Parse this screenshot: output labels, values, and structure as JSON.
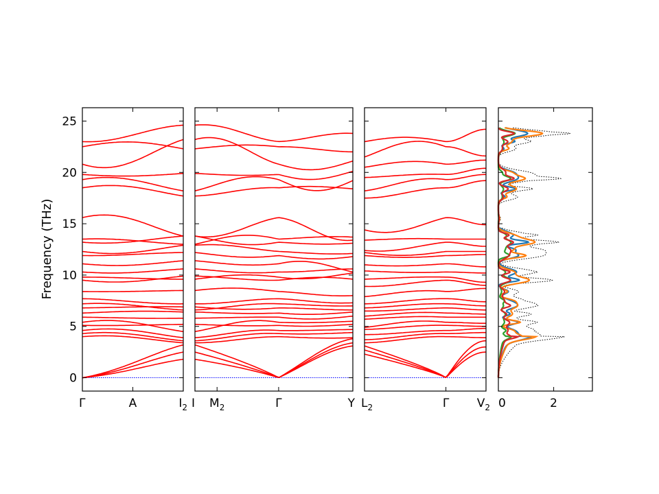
{
  "chart_data": {
    "type": "line",
    "title": "",
    "ylabel": "Frequency (THz)",
    "ylim": [
      -1.3,
      26.3
    ],
    "yticks": [
      0,
      5,
      10,
      15,
      20,
      25
    ],
    "band_color": "#ff0000",
    "zero_line_color": "#0000ff",
    "panels": [
      {
        "name": "panel-1",
        "ticks": [
          {
            "pos": 0,
            "label": "Γ"
          },
          {
            "pos": 0.5,
            "label": "A"
          },
          {
            "pos": 1,
            "label": "I",
            "sub": "2"
          }
        ]
      },
      {
        "name": "panel-2",
        "ticks": [
          {
            "pos": 0,
            "label": "I"
          },
          {
            "pos": 0.14,
            "label": "M",
            "sub": "2"
          },
          {
            "pos": 0.53,
            "label": "Γ"
          },
          {
            "pos": 1,
            "label": "Y"
          }
        ]
      },
      {
        "name": "panel-3",
        "ticks": [
          {
            "pos": 0,
            "label": "L",
            "sub": "2"
          },
          {
            "pos": 0.67,
            "label": "Γ"
          },
          {
            "pos": 1,
            "label": "V",
            "sub": "2"
          }
        ]
      }
    ],
    "bands": [
      {
        "g": 23.0,
        "e": [
          23.6,
          24.6,
          24.3,
          23.8,
          23.0,
          24.2,
          23.9,
          23.6,
          23.7
        ]
      },
      {
        "g": 22.5,
        "e": [
          23.1,
          22.3,
          22.9,
          22.0,
          21.5,
          21.6,
          23.2,
          22.3,
          23.5
        ]
      },
      {
        "g": 20.8,
        "e": [
          20.8,
          23.2,
          23.4,
          21.1,
          20.5,
          21.2,
          20.9,
          19.6,
          21.3
        ]
      },
      {
        "g": 19.8,
        "e": [
          19.6,
          19.9,
          19.6,
          20.1,
          19.5,
          20.4,
          19.5,
          18.7,
          19.8
        ]
      },
      {
        "g": 19.3,
        "e": [
          19.4,
          18.2,
          20.0,
          19.2,
          18.2,
          19.8,
          19.0,
          17.2,
          19.3
        ]
      },
      {
        "g": 18.5,
        "e": [
          18.7,
          17.7,
          18.3,
          18.4,
          17.5,
          19.2,
          18.4,
          18.8,
          18.0
        ]
      },
      {
        "g": 15.6,
        "e": [
          15.6,
          13.8,
          13.9,
          13.4,
          14.4,
          14.9,
          13.5,
          14.0,
          14.0
        ]
      },
      {
        "g": 13.5,
        "e": [
          13.4,
          13.0,
          14.4,
          13.7,
          13.4,
          13.5,
          13.2,
          13.8,
          13.6
        ]
      },
      {
        "g": 13.2,
        "e": [
          13.2,
          13.8,
          12.6,
          13.1,
          12.4,
          12.8,
          13.0,
          12.9,
          12.4
        ]
      },
      {
        "g": 12.3,
        "e": [
          12.1,
          12.9,
          13.0,
          12.1,
          12.2,
          12.3,
          12.3,
          12.0,
          11.7
        ]
      },
      {
        "g": 11.9,
        "e": [
          12.0,
          12.2,
          11.5,
          11.8,
          11.9,
          12.0,
          11.9,
          11.3,
          11.6
        ]
      },
      {
        "g": 11.1,
        "e": [
          10.9,
          11.4,
          10.8,
          10.3,
          11.0,
          10.8,
          11.2,
          11.7,
          10.8
        ]
      },
      {
        "g": 10.3,
        "e": [
          10.2,
          10.6,
          10.1,
          10.6,
          10.4,
          10.2,
          10.6,
          10.4,
          10.2
        ]
      },
      {
        "g": 9.8,
        "e": [
          9.7,
          9.6,
          10.3,
          10.2,
          9.6,
          9.3,
          9.8,
          9.4,
          9.8
        ]
      },
      {
        "g": 9.5,
        "e": [
          9.3,
          9.9,
          9.6,
          9.6,
          8.9,
          9.0,
          9.2,
          10.0,
          9.1
        ]
      },
      {
        "g": 8.4,
        "e": [
          8.4,
          8.5,
          9.0,
          8.0,
          7.9,
          8.7,
          8.4,
          8.0,
          8.5
        ]
      },
      {
        "g": 7.7,
        "e": [
          7.4,
          7.2,
          7.4,
          7.3,
          7.2,
          7.4,
          7.3,
          7.3,
          7.5
        ]
      },
      {
        "g": 7.2,
        "e": [
          7.1,
          6.6,
          7.1,
          7.0,
          6.8,
          7.0,
          6.9,
          7.0,
          7.1
        ]
      },
      {
        "g": 6.8,
        "e": [
          6.9,
          6.9,
          6.5,
          6.6,
          6.5,
          6.6,
          6.7,
          6.7,
          6.6
        ]
      },
      {
        "g": 6.3,
        "e": [
          6.5,
          6.4,
          6.2,
          6.4,
          6.0,
          6.2,
          6.3,
          6.0,
          6.4
        ]
      },
      {
        "g": 5.9,
        "e": [
          5.8,
          5.8,
          5.9,
          6.0,
          5.7,
          5.9,
          5.9,
          5.5,
          6.0
        ]
      },
      {
        "g": 5.4,
        "e": [
          5.5,
          4.5,
          5.8,
          5.5,
          4.9,
          5.3,
          5.4,
          5.3,
          5.6
        ]
      },
      {
        "g": 5.1,
        "e": [
          5.1,
          5.2,
          5.0,
          5.2,
          4.7,
          5.0,
          5.1,
          4.9,
          5.0
        ]
      },
      {
        "g": 4.6,
        "e": [
          4.7,
          3.9,
          4.6,
          4.7,
          4.2,
          4.8,
          4.8,
          4.6,
          4.4
        ]
      },
      {
        "g": 4.3,
        "e": [
          4.3,
          3.6,
          4.2,
          4.4,
          3.7,
          4.4,
          4.3,
          4.2,
          4.1
        ]
      },
      {
        "g": 4.0,
        "e": [
          4.0,
          3.4,
          3.7,
          3.9,
          3.4,
          3.9,
          3.8,
          3.8,
          3.8
        ]
      },
      {
        "g": 0.0,
        "e": [
          0.0,
          3.2,
          3.4,
          3.8,
          3.1,
          3.6,
          3.0,
          3.5,
          3.0
        ]
      },
      {
        "g": 0.0,
        "e": [
          0.0,
          2.5,
          2.6,
          3.4,
          2.7,
          3.0,
          2.7,
          3.0,
          2.6
        ]
      },
      {
        "g": 0.0,
        "e": [
          0.0,
          1.8,
          2.1,
          3.1,
          2.3,
          2.5,
          2.0,
          2.8,
          2.0
        ]
      }
    ],
    "dos": {
      "xlim": [
        0,
        3.4
      ],
      "xticks": [
        {
          "pos": 0,
          "label": "0"
        },
        {
          "pos": 2,
          "label": "2"
        }
      ],
      "series": [
        {
          "color": "#000000",
          "style": "dotted",
          "scale": 1.0
        },
        {
          "color": "#1f77b4",
          "style": "solid",
          "scale": 0.45
        },
        {
          "color": "#ff7f0e",
          "style": "solid",
          "scale": 0.5
        },
        {
          "color": "#2ca02c",
          "style": "solid",
          "scale": 0.2
        },
        {
          "color": "#d62728",
          "style": "solid",
          "scale": 0.28
        }
      ],
      "peaks": [
        {
          "f": 4.0,
          "h": 1.7
        },
        {
          "f": 4.6,
          "h": 1.3
        },
        {
          "f": 5.4,
          "h": 1.6
        },
        {
          "f": 6.2,
          "h": 1.2
        },
        {
          "f": 7.0,
          "h": 1.4
        },
        {
          "f": 7.5,
          "h": 1.0
        },
        {
          "f": 8.4,
          "h": 0.8
        },
        {
          "f": 9.5,
          "h": 2.3
        },
        {
          "f": 10.3,
          "h": 1.5
        },
        {
          "f": 11.9,
          "h": 2.0
        },
        {
          "f": 12.5,
          "h": 1.3
        },
        {
          "f": 13.2,
          "h": 2.6
        },
        {
          "f": 13.9,
          "h": 1.4
        },
        {
          "f": 15.5,
          "h": 0.6
        },
        {
          "f": 17.6,
          "h": 0.7
        },
        {
          "f": 18.4,
          "h": 1.4
        },
        {
          "f": 19.4,
          "h": 2.2
        },
        {
          "f": 20.0,
          "h": 1.0
        },
        {
          "f": 22.3,
          "h": 0.7
        },
        {
          "f": 23.0,
          "h": 1.2
        },
        {
          "f": 23.8,
          "h": 3.2
        }
      ]
    }
  }
}
